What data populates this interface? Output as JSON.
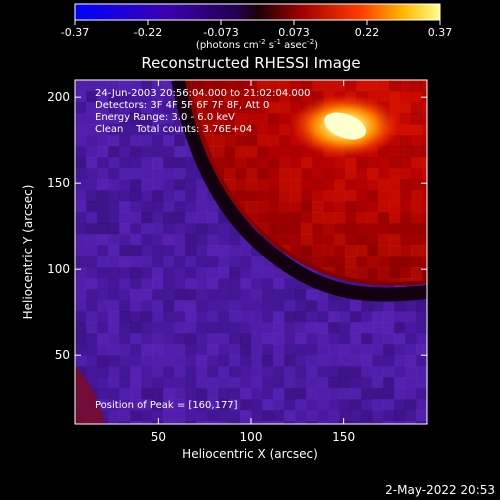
{
  "chart_data": {
    "type": "heatmap",
    "title": "Reconstructed RHESSI Image",
    "xlabel": "Heliocentric X (arcsec)",
    "ylabel": "Heliocentric Y (arcsec)",
    "xlim": [
      5,
      195
    ],
    "ylim": [
      10,
      210
    ],
    "x_ticks": [
      50,
      100,
      150
    ],
    "y_ticks": [
      50,
      100,
      150,
      200
    ],
    "colorbar": {
      "min": -0.37,
      "max": 0.37,
      "ticks": [
        "-0.37",
        "-0.22",
        "-0.073",
        "0.073",
        "0.22",
        "0.37"
      ],
      "unit_main": "(photons cm",
      "unit_sup1": "-2",
      "unit_mid": " s",
      "unit_sup2": "-1",
      "unit_mid2": " asec",
      "unit_sup3": "-2",
      "unit_end": ")"
    },
    "info_lines": [
      "24-Jun-2003 20:56:04.000 to 21:02:04.000",
      "Detectors: 3F 4F 5F 6F 7F 8F, Att 0",
      "Energy Range: 3.0 - 6.0 keV",
      "Clean    Total counts: 3.76E+04"
    ],
    "peak_label": "Position of Peak = [160,177]",
    "peak": [
      160,
      177
    ],
    "regions": {
      "background_level": -0.2,
      "limb_boundary": [
        [
          60,
          210
        ],
        [
          80,
          160
        ],
        [
          100,
          125
        ],
        [
          120,
          108
        ],
        [
          140,
          97
        ],
        [
          170,
          90
        ],
        [
          195,
          90
        ]
      ],
      "disk_level": 0.1,
      "flare_peak_level": 0.37
    },
    "colors": {
      "background": "#000000",
      "text": "#ffffff",
      "negative": "#4b1aa8",
      "disk": "#c00000",
      "flare": "#ffee80"
    }
  },
  "timestamp": "2-May-2022 20:53"
}
